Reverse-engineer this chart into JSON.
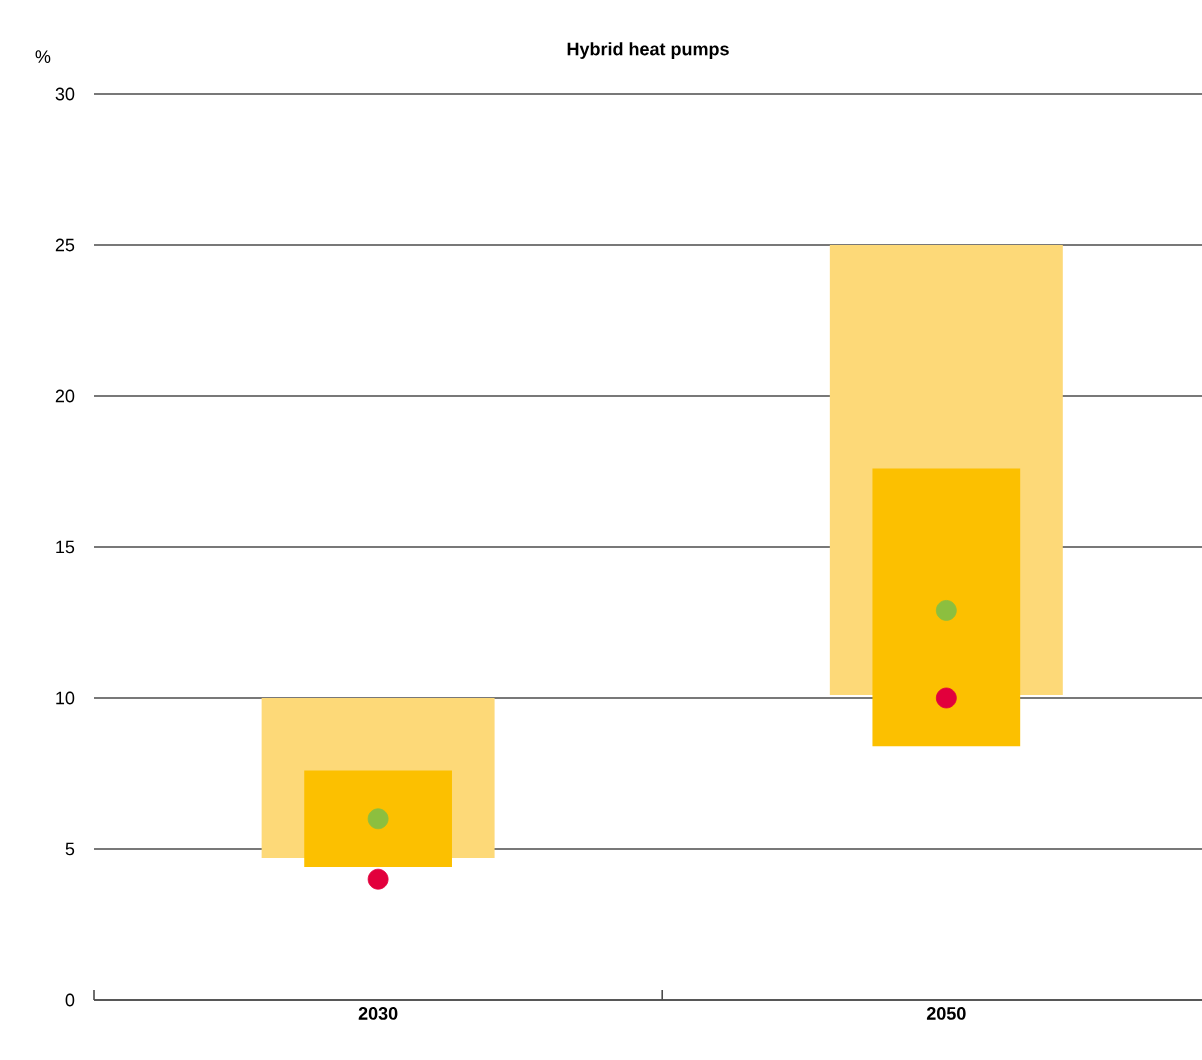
{
  "chart_data": {
    "type": "bar",
    "title": "Hybrid heat pumps",
    "ylabel": "%",
    "categories": [
      "2030",
      "2050"
    ],
    "series": [
      {
        "color": "#fdd978",
        "base": [
          4.7,
          10.1
        ],
        "values": [
          5.3,
          14.9
        ]
      },
      {
        "color": "#fcc000",
        "base": [
          4.4,
          8.4
        ],
        "values": [
          3.2,
          9.2
        ]
      },
      {
        "type": "scatter",
        "color": "#8cbf3f",
        "values": [
          6,
          12.9
        ]
      },
      {
        "type": "scatter",
        "color": "#e2003c",
        "values": [
          4,
          10
        ]
      }
    ],
    "ylim": [
      0,
      30
    ],
    "yticks": [
      0,
      5,
      10,
      15,
      20,
      25,
      30
    ],
    "grid": "y",
    "marker": "circle"
  }
}
